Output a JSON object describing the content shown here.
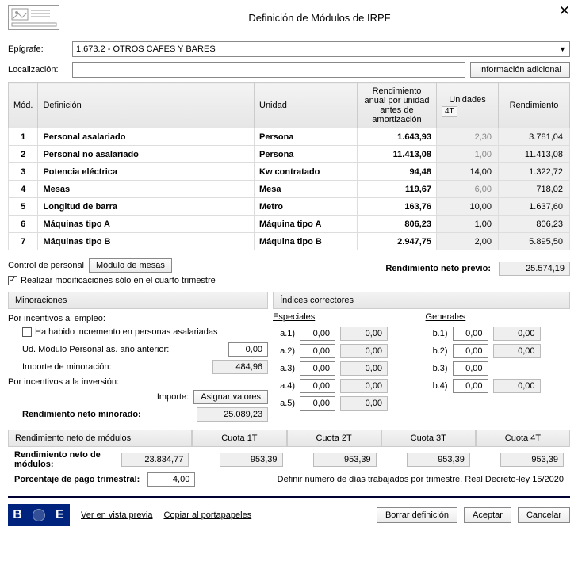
{
  "window": {
    "title": "Definición de Módulos de IRPF",
    "close": "✕"
  },
  "form": {
    "epigrafe_label": "Epígrafe:",
    "epigrafe_value": "1.673.2 - OTROS CAFES Y BARES",
    "localizacion_label": "Localización:",
    "localizacion_value": "",
    "info_adicional_btn": "Información adicional"
  },
  "grid": {
    "headers": {
      "mod": "Mód.",
      "definicion": "Definición",
      "unidad": "Unidad",
      "rend_unidad": "Rendimiento anual por unidad antes de amortización",
      "unidades": "Unidades",
      "trimestre_tag": "4T",
      "rendimiento": "Rendimiento"
    },
    "rows": [
      {
        "mod": "1",
        "def": "Personal asalariado",
        "unidad": "Persona",
        "rpu": "1.643,93",
        "unid": "2,30",
        "unid_grey": true,
        "rend": "3.781,04"
      },
      {
        "mod": "2",
        "def": "Personal no asalariado",
        "unidad": "Persona",
        "rpu": "11.413,08",
        "unid": "1,00",
        "unid_grey": true,
        "rend": "11.413,08"
      },
      {
        "mod": "3",
        "def": "Potencia eléctrica",
        "unidad": "Kw contratado",
        "rpu": "94,48",
        "unid": "14,00",
        "unid_grey": false,
        "rend": "1.322,72"
      },
      {
        "mod": "4",
        "def": "Mesas",
        "unidad": "Mesa",
        "rpu": "119,67",
        "unid": "6,00",
        "unid_grey": true,
        "rend": "718,02"
      },
      {
        "mod": "5",
        "def": "Longitud de barra",
        "unidad": "Metro",
        "rpu": "163,76",
        "unid": "10,00",
        "unid_grey": false,
        "rend": "1.637,60"
      },
      {
        "mod": "6",
        "def": "Máquinas tipo A",
        "unidad": "Máquina tipo A",
        "rpu": "806,23",
        "unid": "1,00",
        "unid_grey": false,
        "rend": "806,23"
      },
      {
        "mod": "7",
        "def": "Máquinas tipo B",
        "unidad": "Máquina tipo B",
        "rpu": "2.947,75",
        "unid": "2,00",
        "unid_grey": false,
        "rend": "5.895,50"
      }
    ]
  },
  "controls": {
    "control_personal": "Control de personal",
    "modulo_mesas": "Módulo de mesas",
    "realizar_mod_4t": "Realizar modificaciones sólo en el cuarto trimestre",
    "rend_neto_previo_label": "Rendimiento neto previo:",
    "rend_neto_previo_value": "25.574,19"
  },
  "minoraciones": {
    "title": "Minoraciones",
    "incentivos_empleo": "Por incentivos al empleo:",
    "incremento_asalariadas": "Ha habido incremento en personas asalariadas",
    "ud_modulo_anterior_label": "Ud. Módulo Personal as. año anterior:",
    "ud_modulo_anterior_value": "0,00",
    "importe_minoracion_label": "Importe de minoración:",
    "importe_minoracion_value": "484,96",
    "incentivos_inversion": "Por incentivos a la inversión:",
    "importe_label": "Importe:",
    "asignar_valores": "Asignar valores",
    "rend_neto_minorado_label": "Rendimiento neto minorado:",
    "rend_neto_minorado_value": "25.089,23"
  },
  "indices": {
    "title": "Índices correctores",
    "especiales": "Especiales",
    "generales": "Generales",
    "a": [
      {
        "lbl": "a.1)",
        "v1": "0,00",
        "v2": "0,00"
      },
      {
        "lbl": "a.2)",
        "v1": "0,00",
        "v2": "0,00"
      },
      {
        "lbl": "a.3)",
        "v1": "0,00",
        "v2": "0,00"
      },
      {
        "lbl": "a.4)",
        "v1": "0,00",
        "v2": "0,00"
      },
      {
        "lbl": "a.5)",
        "v1": "0,00",
        "v2": "0,00"
      }
    ],
    "b": [
      {
        "lbl": "b.1)",
        "v1": "0,00",
        "v2": "0,00"
      },
      {
        "lbl": "b.2)",
        "v1": "0,00",
        "v2": "0,00"
      },
      {
        "lbl": "b.3)",
        "v1": "0,00",
        "v2": ""
      },
      {
        "lbl": "b.4)",
        "v1": "0,00",
        "v2": "0,00"
      }
    ]
  },
  "cuotas": {
    "section": "Rendimiento neto de módulos",
    "headers": [
      "Cuota 1T",
      "Cuota 2T",
      "Cuota 3T",
      "Cuota 4T"
    ],
    "rend_neto_modulos_label": "Rendimiento neto de módulos:",
    "rend_neto_modulos_value": "23.834,77",
    "values": [
      "953,39",
      "953,39",
      "953,39",
      "953,39"
    ],
    "porcentaje_label": "Porcentaje de pago trimestral:",
    "porcentaje_value": "4,00",
    "definir_dias": "Definir número de días trabajados por trimestre. Real Decreto-ley 15/2020"
  },
  "footer": {
    "vista_previa": "Ver en vista previa",
    "copiar": "Copiar al portapapeles",
    "borrar": "Borrar definición",
    "aceptar": "Aceptar",
    "cancelar": "Cancelar"
  }
}
